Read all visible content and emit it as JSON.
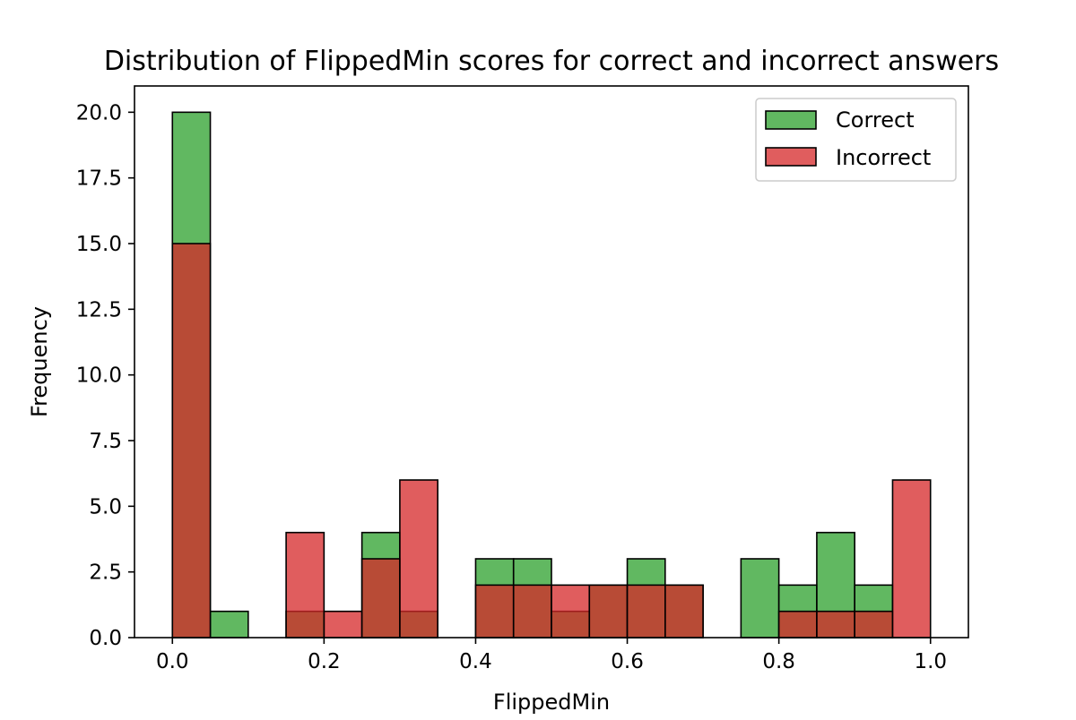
{
  "chart_data": {
    "type": "bar",
    "title": "Distribution of FlippedMin scores for correct and incorrect answers",
    "xlabel": "FlippedMin",
    "ylabel": "Frequency",
    "xlim": [
      -0.05,
      1.05
    ],
    "ylim": [
      0,
      21
    ],
    "bin_edges": [
      0.0,
      0.05,
      0.1,
      0.15,
      0.2,
      0.25,
      0.3,
      0.35,
      0.4,
      0.45,
      0.5,
      0.55,
      0.6,
      0.65,
      0.7,
      0.75,
      0.8,
      0.85,
      0.9,
      0.95,
      1.0
    ],
    "x_ticks": [
      "0.0",
      "0.2",
      "0.4",
      "0.6",
      "0.8",
      "1.0"
    ],
    "y_ticks": [
      "0.0",
      "2.5",
      "5.0",
      "7.5",
      "10.0",
      "12.5",
      "15.0",
      "17.5",
      "20.0"
    ],
    "series": [
      {
        "name": "Correct",
        "color": "#2ca02c",
        "values": [
          20,
          1,
          0,
          1,
          0,
          4,
          1,
          0,
          3,
          3,
          1,
          2,
          3,
          2,
          0,
          3,
          2,
          4,
          2,
          0
        ]
      },
      {
        "name": "Incorrect",
        "color": "#d62728",
        "values": [
          15,
          0,
          0,
          4,
          1,
          3,
          6,
          0,
          2,
          2,
          2,
          2,
          2,
          2,
          0,
          0,
          1,
          1,
          1,
          6
        ]
      }
    ],
    "legend_position": "upper right",
    "grid": false
  }
}
